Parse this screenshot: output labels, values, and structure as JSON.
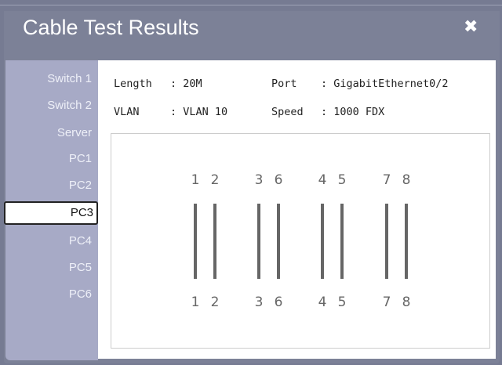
{
  "dialog": {
    "title": "Cable Test Results",
    "close_icon": "close-icon"
  },
  "sidebar": {
    "items": [
      {
        "label": "Switch 1"
      },
      {
        "label": "Switch 2"
      },
      {
        "label": "Server"
      },
      {
        "label": "PC1"
      },
      {
        "label": "PC2"
      },
      {
        "label": "PC3",
        "selected": true
      },
      {
        "label": "PC4"
      },
      {
        "label": "PC5"
      },
      {
        "label": "PC6"
      }
    ]
  },
  "info": {
    "length_label": "Length",
    "length_value": ": 20M",
    "port_label": "Port",
    "port_value": ": GigabitEthernet0/2",
    "vlan_label": "VLAN",
    "vlan_value": ": VLAN 10",
    "speed_label": "Speed",
    "speed_value": ": 1000 FDX"
  },
  "wiring": {
    "top_pins": [
      "1",
      "2",
      "3",
      "6",
      "4",
      "5",
      "7",
      "8"
    ],
    "bottom_pins": [
      "1",
      "2",
      "3",
      "6",
      "4",
      "5",
      "7",
      "8"
    ],
    "wire_color": "#666666"
  }
}
